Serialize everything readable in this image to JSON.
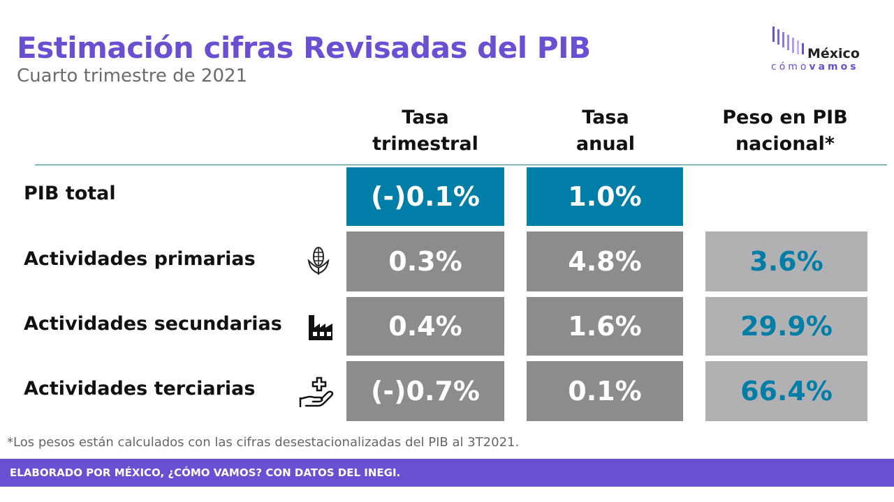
{
  "header": {
    "title": "Estimación cifras Revisadas del PIB",
    "subtitle": "Cuarto trimestre de 2021"
  },
  "logo": {
    "word": "México",
    "tag_light": "cómo",
    "tag_bold": "vamos",
    "color": "#6a4fd3"
  },
  "columns": {
    "trimestral": [
      "Tasa",
      "trimestral"
    ],
    "anual": [
      "Tasa",
      "anual"
    ],
    "peso": [
      "Peso en PIB",
      "nacional*"
    ]
  },
  "rows": {
    "total": {
      "label": "PIB total",
      "trimestral": "(-)0.1%",
      "anual": "1.0%"
    },
    "primarias": {
      "label": "Actividades primarias",
      "icon": "corn-icon",
      "trimestral": "0.3%",
      "anual": "4.8%",
      "peso": "3.6%"
    },
    "secundarias": {
      "label": "Actividades secundarias",
      "icon": "factory-icon",
      "trimestral": "0.4%",
      "anual": "1.6%",
      "peso": "29.9%"
    },
    "terciarias": {
      "label": "Actividades terciarias",
      "icon": "hand-plus-icon",
      "trimestral": "(-)0.7%",
      "anual": "0.1%",
      "peso": "66.4%"
    }
  },
  "colors": {
    "accent": "#6a4fd3",
    "blue": "#007ea7",
    "gray": "#8c8c8e",
    "light_gray": "#b1b1b3"
  },
  "footnote": "*Los pesos están calculados con las cifras desestacionalizadas del PIB al 3T2021.",
  "footer": "ELABORADO POR MÉXICO, ¿CÓMO VAMOS? CON DATOS DEL INEGI."
}
